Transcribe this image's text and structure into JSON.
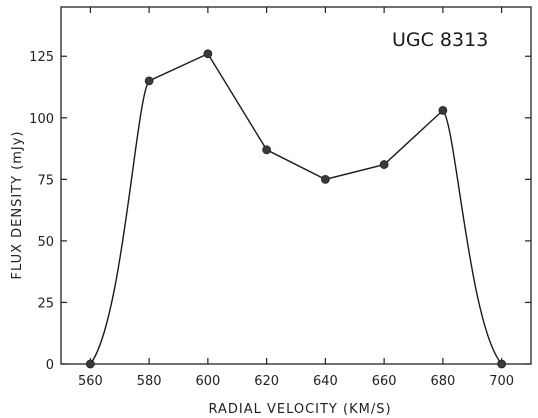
{
  "chart_data": {
    "type": "line",
    "title": "UGC 8313",
    "xlabel": "RADIAL VELOCITY (KM/S)",
    "ylabel": "FLUX DENSITY (mJy)",
    "xlim": [
      550,
      710
    ],
    "ylim": [
      0,
      145
    ],
    "xticks": [
      560,
      580,
      600,
      620,
      640,
      660,
      680,
      700
    ],
    "yticks": [
      0,
      25,
      50,
      75,
      100,
      125
    ],
    "grid": false,
    "series": [
      {
        "x": [
          560,
          580,
          600,
          620,
          640,
          660,
          680,
          700
        ],
        "y": [
          0,
          115,
          126,
          87,
          75,
          81,
          103,
          0
        ]
      }
    ]
  }
}
